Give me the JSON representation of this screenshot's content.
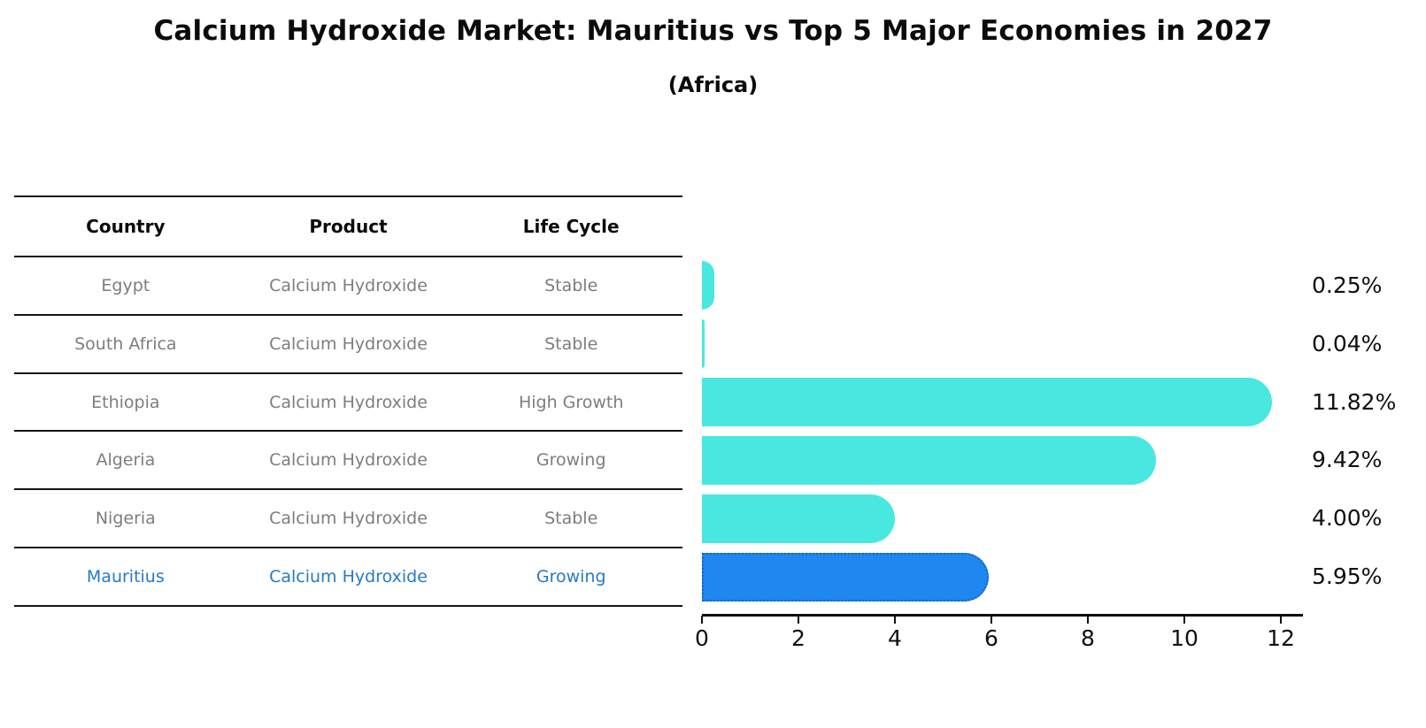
{
  "page": {
    "title": "Calcium Hydroxide Market: Mauritius vs Top 5 Major Economies in 2027",
    "subtitle": "(Africa)"
  },
  "table": {
    "headers": [
      "Country",
      "Product",
      "Life Cycle"
    ],
    "rows": [
      {
        "country": "Egypt",
        "product": "Calcium Hydroxide",
        "life_cycle": "Stable",
        "emphasized": false
      },
      {
        "country": "South Africa",
        "product": "Calcium Hydroxide",
        "life_cycle": "Stable",
        "emphasized": false
      },
      {
        "country": "Ethiopia",
        "product": "Calcium Hydroxide",
        "life_cycle": "High Growth",
        "emphasized": false
      },
      {
        "country": "Algeria",
        "product": "Calcium Hydroxide",
        "life_cycle": "Growing",
        "emphasized": false
      },
      {
        "country": "Nigeria",
        "product": "Calcium Hydroxide",
        "life_cycle": "Stable",
        "emphasized": false
      },
      {
        "country": "Mauritius",
        "product": "Calcium Hydroxide",
        "life_cycle": "Growing",
        "emphasized": true
      }
    ]
  },
  "chart_data": {
    "type": "bar",
    "orientation": "horizontal",
    "title": "Calcium Hydroxide Market: Mauritius vs Top 5 Major Economies in 2027",
    "subtitle": "(Africa)",
    "categories": [
      "Egypt",
      "South Africa",
      "Ethiopia",
      "Algeria",
      "Nigeria",
      "Mauritius"
    ],
    "values": [
      0.25,
      0.04,
      11.82,
      9.42,
      4.0,
      5.95
    ],
    "value_labels": [
      "0.25%",
      "0.04%",
      "11.82%",
      "9.42%",
      "4.00%",
      "5.95%"
    ],
    "unit": "percent",
    "x_ticks": [
      0,
      2,
      4,
      6,
      8,
      10,
      12
    ],
    "xlim": [
      0,
      12.46
    ],
    "grid": false,
    "legend": false,
    "bar_color": "#48e8e1",
    "highlight_index": 5,
    "highlight_color": "#1e87f0",
    "highlight_border_color": "#1d5fc6",
    "emphasis_text_color": "#2779c7",
    "table_text_color": "#7d7d7d",
    "axis_color": "#101010"
  }
}
